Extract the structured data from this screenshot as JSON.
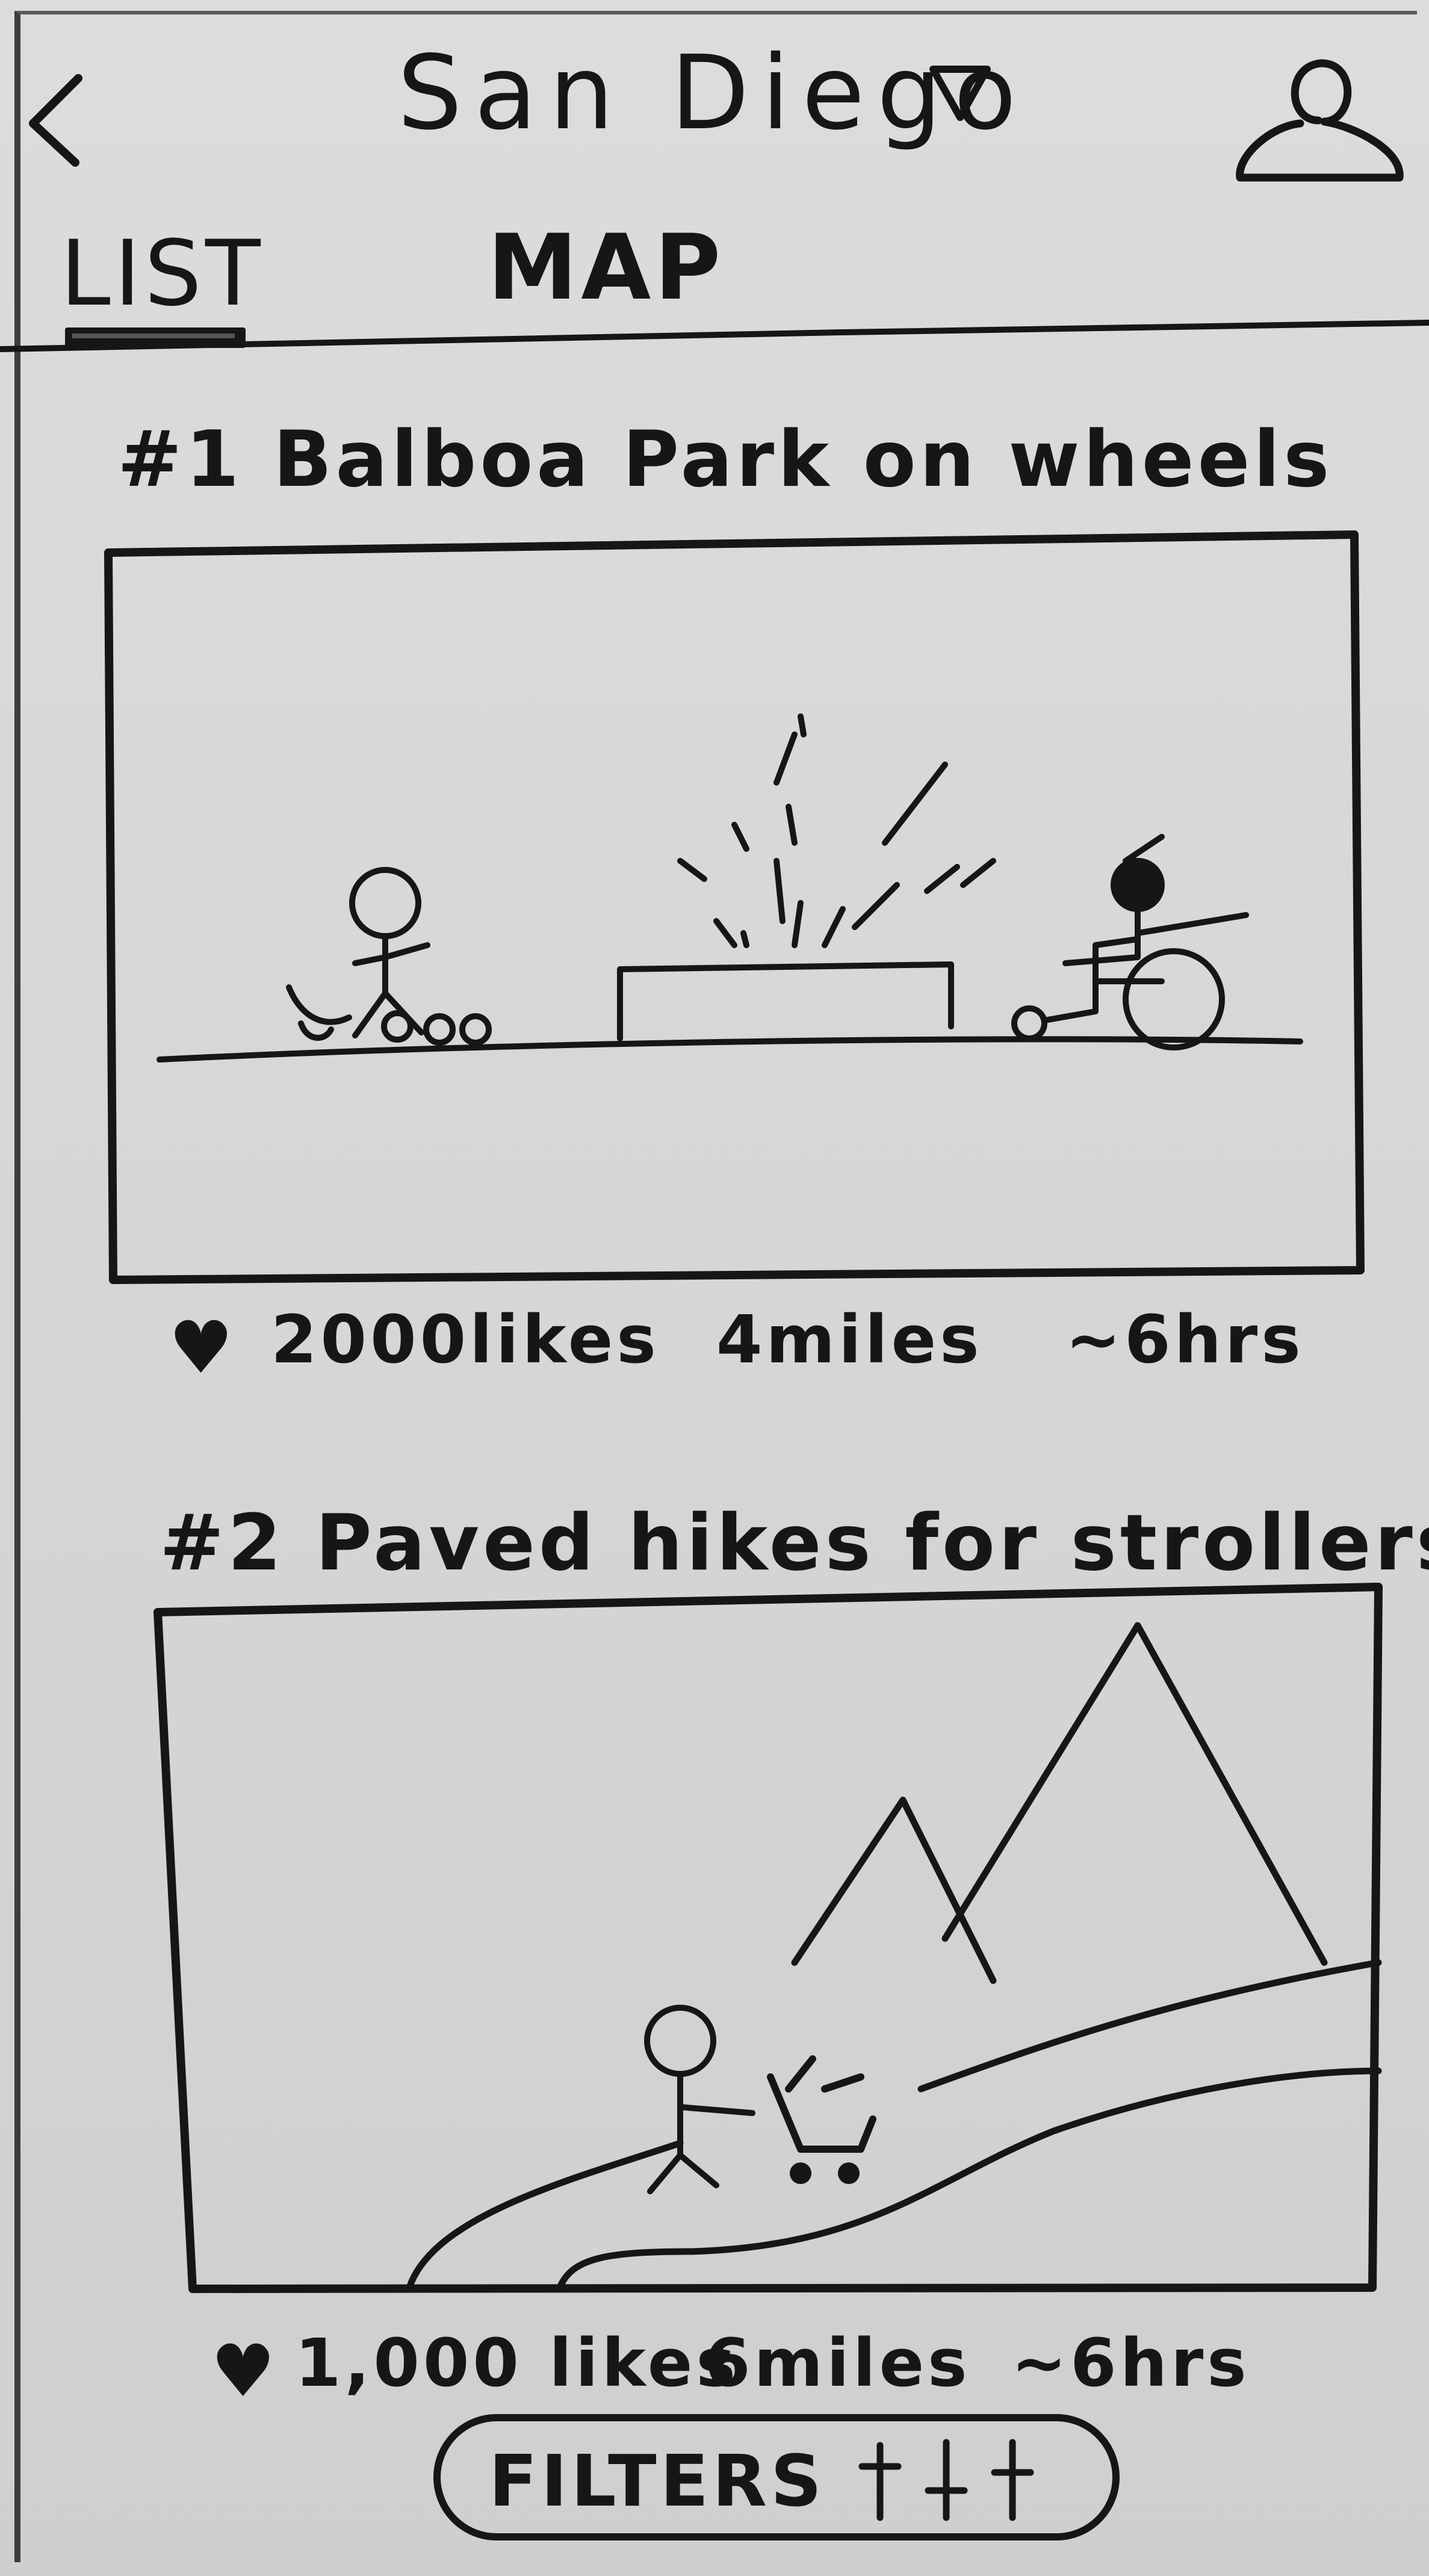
{
  "header": {
    "back_icon": "chevron-left-icon",
    "title": "San Diego",
    "dropdown_icon": "triangle-down-icon",
    "profile_icon": "user-icon"
  },
  "tabs": [
    {
      "label": "LIST",
      "active": true
    },
    {
      "label": "MAP",
      "active": false
    }
  ],
  "cards": [
    {
      "title": "#1 Balboa Park on wheels",
      "image": "fountain-with-stroller-and-wheelchair",
      "likes": "2000likes",
      "distance": "4miles",
      "duration": "~6hrs"
    },
    {
      "title": "#2 Paved hikes for strollers",
      "image": "mountain-trail-with-stroller",
      "likes": "1,000 likes",
      "distance": "6miles",
      "duration": "~6hrs"
    }
  ],
  "filters": {
    "label": "FILTERS",
    "icon": "sliders-icon"
  },
  "colors": {
    "paper": "#d6d6d6",
    "ink": "#161616"
  }
}
